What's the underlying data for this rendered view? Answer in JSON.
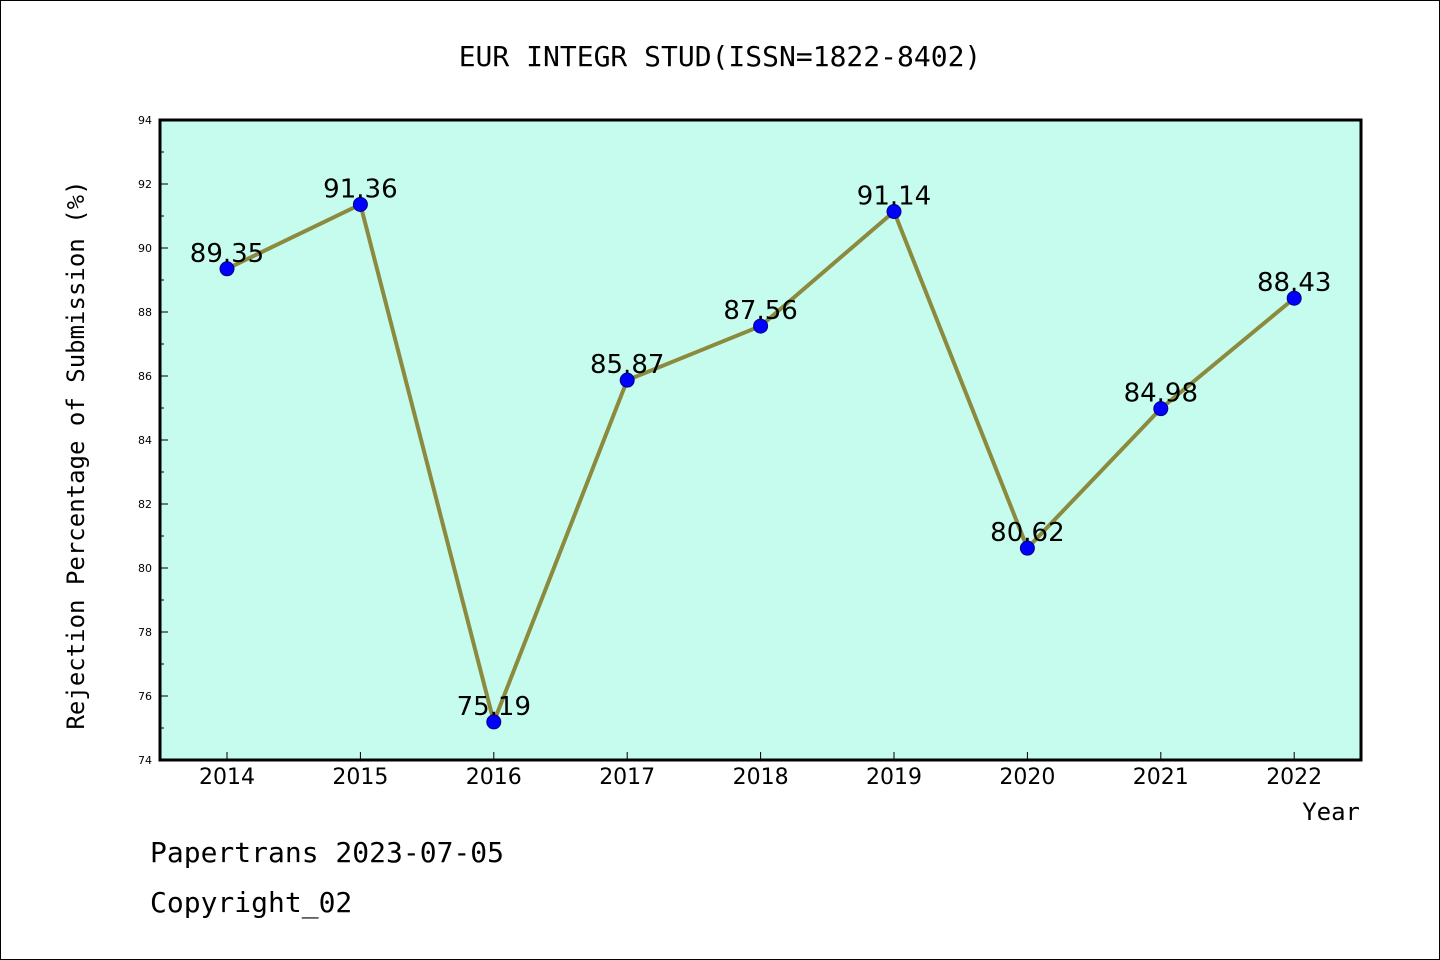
{
  "chart_data": {
    "type": "line",
    "title": "EUR INTEGR STUD(ISSN=1822-8402)",
    "xlabel": "Year",
    "ylabel": "Rejection Percentage of Submission (%)",
    "categories": [
      "2014",
      "2015",
      "2016",
      "2017",
      "2018",
      "2019",
      "2020",
      "2021",
      "2022"
    ],
    "series": [
      {
        "values": [
          89.35,
          91.36,
          75.19,
          85.87,
          87.56,
          91.14,
          80.62,
          84.98,
          88.43
        ],
        "labels": [
          "89.35",
          "91.36",
          "75.19",
          "85.87",
          "87.56",
          "91.14",
          "80.62",
          "84.98",
          "88.43"
        ]
      }
    ],
    "ylim": [
      74,
      94
    ],
    "yticks": [
      "74",
      "76",
      "78",
      "80",
      "82",
      "84",
      "86",
      "88",
      "90",
      "92",
      "94"
    ],
    "grid": false,
    "colors": {
      "plot_background": "#c6fcee",
      "line": "#8b8a3e",
      "marker": "#0000ff"
    }
  },
  "footer": {
    "line1": "Papertrans 2023-07-05",
    "line2": "Copyright_02"
  }
}
